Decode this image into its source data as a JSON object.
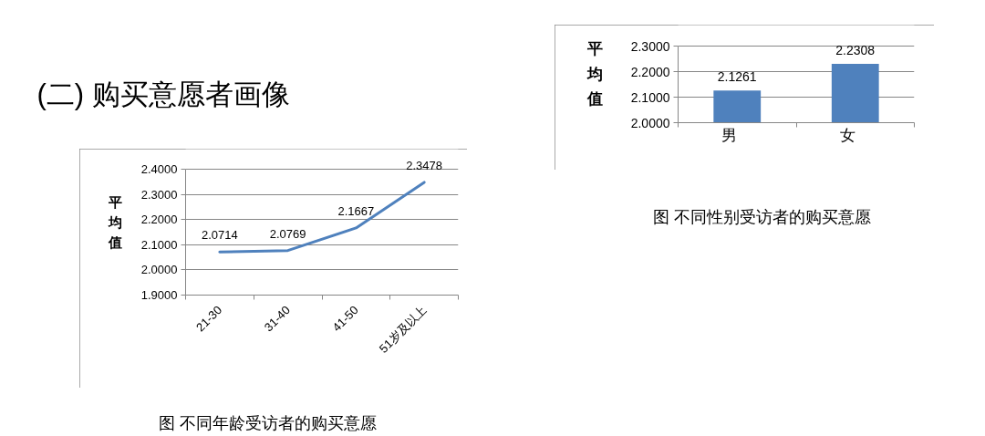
{
  "chart_data": [
    {
      "type": "line",
      "title": "(二) 购买意愿者画像",
      "ylabel": "平均值",
      "categories": [
        "21-30",
        "31-40",
        "41-50",
        "51岁及以上"
      ],
      "values": [
        2.0714,
        2.0769,
        2.1667,
        2.3478
      ],
      "color": "#4f81bd",
      "ylim": [
        1.9,
        2.4
      ],
      "yticks": [
        {
          "value": 1.9,
          "label": "1.9000"
        },
        {
          "value": 2.0,
          "label": "2.0000"
        },
        {
          "value": 2.1,
          "label": "2.1000"
        },
        {
          "value": 2.2,
          "label": "2.2000"
        },
        {
          "value": 2.3,
          "label": "2.3000"
        },
        {
          "value": 2.4,
          "label": "2.4000"
        }
      ],
      "grid": "y",
      "data_labels": true,
      "annotations": [
        "图 不同年龄受访者的购买意愿"
      ]
    },
    {
      "type": "bar",
      "ylabel": "平均值",
      "categories": [
        "男",
        "女"
      ],
      "values": [
        2.1261,
        2.2308
      ],
      "color": "#4f81bd",
      "ylim": [
        2.0,
        2.3
      ],
      "yticks": [
        {
          "value": 2.0,
          "label": "2.0000"
        },
        {
          "value": 2.1,
          "label": "2.1000"
        },
        {
          "value": 2.2,
          "label": "2.2000"
        },
        {
          "value": 2.3,
          "label": "2.3000"
        }
      ],
      "grid": "y",
      "data_labels": true,
      "annotations": [
        "图 不同性别受访者的购买意愿"
      ]
    }
  ]
}
